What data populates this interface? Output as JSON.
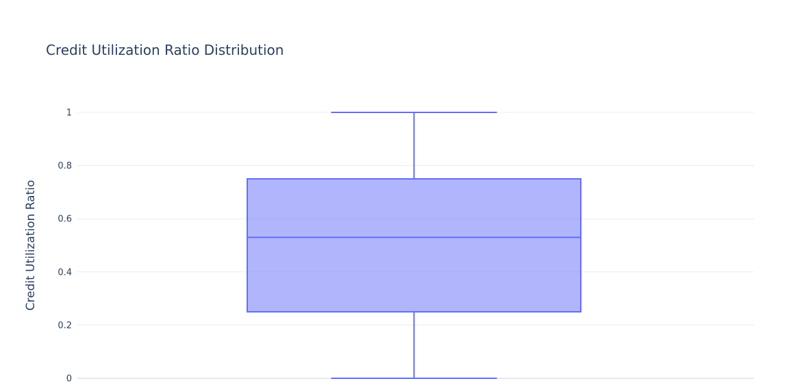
{
  "chart_data": {
    "type": "box",
    "title": "Credit Utilization Ratio Distribution",
    "xlabel": "",
    "ylabel": "Credit Utilization Ratio",
    "ylim": [
      0,
      1
    ],
    "y_ticks": [
      0,
      0.2,
      0.4,
      0.6,
      0.8,
      1
    ],
    "y_tick_labels": [
      "0",
      "0.2",
      "0.4",
      "0.6",
      "0.8",
      "1"
    ],
    "grid": true,
    "series": [
      {
        "min": 0,
        "q1": 0.25,
        "median": 0.53,
        "q3": 0.75,
        "max": 1
      }
    ],
    "colors": {
      "box_line": "#636efa",
      "box_fill": "#636efa",
      "grid": "#e9ecf2",
      "zero_line": "#e5e9f3",
      "text": "#2a3f5f"
    }
  }
}
